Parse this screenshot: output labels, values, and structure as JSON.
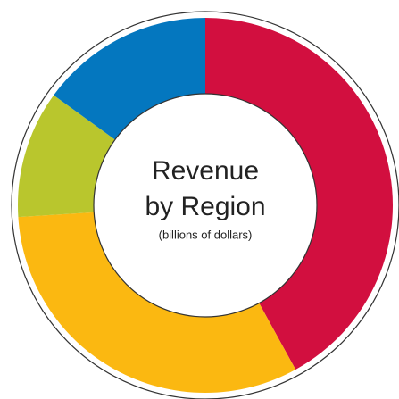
{
  "chart_data": {
    "type": "donut",
    "title": [
      "Revenue",
      "by Region"
    ],
    "subtitle": "(billions of dollars)",
    "categories": [
      null,
      null,
      null,
      null
    ],
    "values": [
      42,
      32,
      11,
      15
    ],
    "colors": [
      "#d20f3f",
      "#fbb811",
      "#b9c62d",
      "#0477bf"
    ],
    "start_angle": 0,
    "direction": "clockwise"
  }
}
